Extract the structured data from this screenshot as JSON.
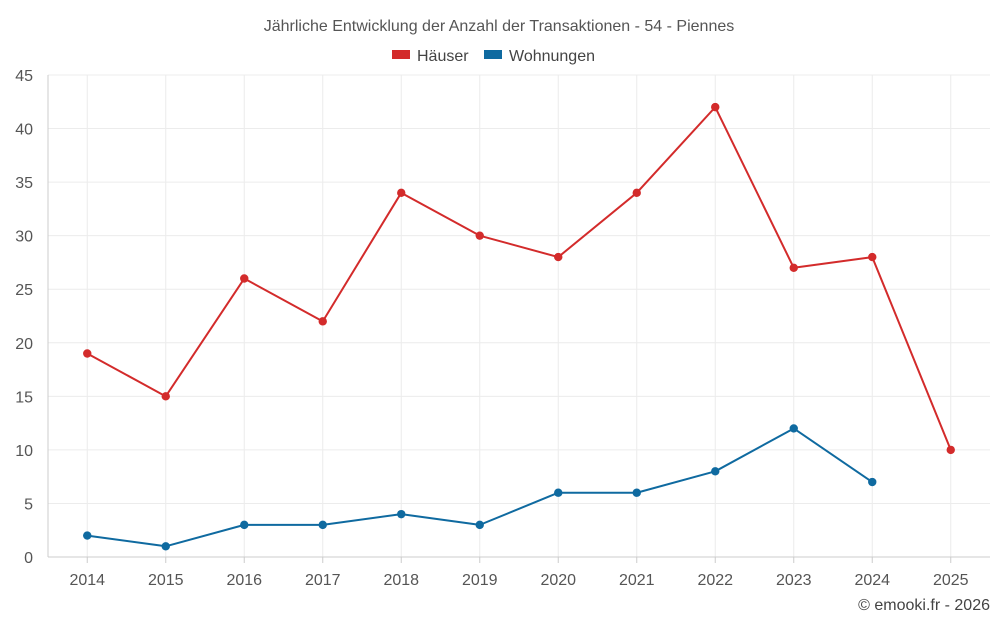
{
  "chart_data": {
    "type": "line",
    "title": "Jährliche Entwicklung der Anzahl der Transaktionen - 54 - Piennes",
    "categories": [
      "2014",
      "2015",
      "2016",
      "2017",
      "2018",
      "2019",
      "2020",
      "2021",
      "2022",
      "2023",
      "2024",
      "2025"
    ],
    "series": [
      {
        "name": "Häuser",
        "color": "#d32b2b",
        "values": [
          19,
          15,
          26,
          22,
          34,
          30,
          28,
          34,
          42,
          27,
          28,
          10
        ]
      },
      {
        "name": "Wohnungen",
        "color": "#0f6aa0",
        "values": [
          2,
          1,
          3,
          3,
          4,
          3,
          6,
          6,
          8,
          12,
          7,
          null
        ]
      }
    ],
    "ylim": [
      0,
      45
    ],
    "yticks": [
      0,
      5,
      10,
      15,
      20,
      25,
      30,
      35,
      40,
      45
    ],
    "xlabel": "",
    "ylabel": "",
    "grid": true,
    "legend_position": "top-center"
  },
  "credit": "© emooki.fr - 2026"
}
